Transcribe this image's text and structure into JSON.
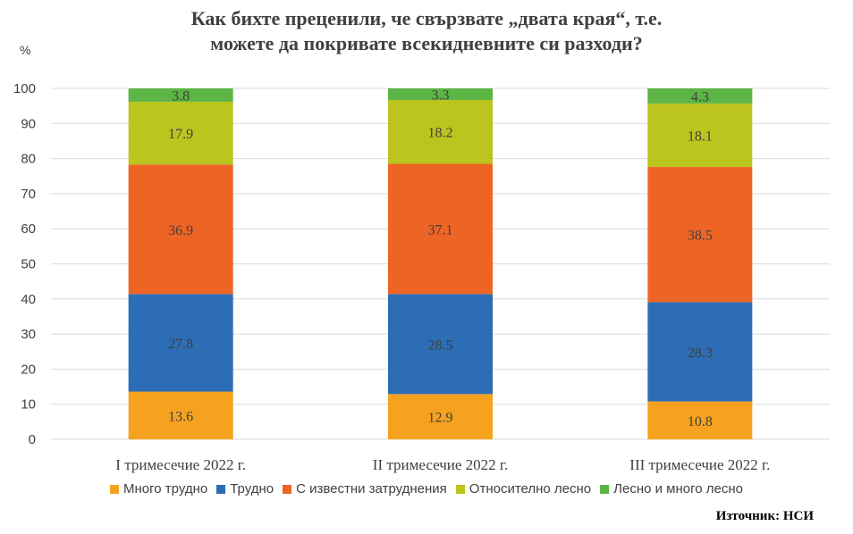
{
  "chart_data": {
    "type": "bar",
    "stacked": true,
    "title_lines": [
      "Как бихте преценили, че свързвате „двата края“, т.е.",
      "можете да покривате всекидневните си разходи?"
    ],
    "ylabel": "%",
    "ylim": [
      0,
      100
    ],
    "yticks": [
      0,
      10,
      20,
      30,
      40,
      50,
      60,
      70,
      80,
      90,
      100
    ],
    "grid": true,
    "legend_position": "bottom",
    "categories": [
      "I тримесечие 2022  г.",
      "II тримесечие 2022  г.",
      "III тримесечие 2022  г."
    ],
    "series": [
      {
        "name": "Много трудно",
        "color": "#F5A21F",
        "values": [
          13.6,
          12.9,
          10.8
        ]
      },
      {
        "name": "Трудно",
        "color": "#2C6DB5",
        "values": [
          27.8,
          28.5,
          28.3
        ]
      },
      {
        "name": "С известни  затруднения",
        "color": "#EE6425",
        "values": [
          36.9,
          37.1,
          38.5
        ]
      },
      {
        "name": "Относително  лесно",
        "color": "#BCC41E",
        "values": [
          17.9,
          18.2,
          18.1
        ]
      },
      {
        "name": "Лесно и много лесно",
        "color": "#5CB545",
        "values": [
          3.8,
          3.3,
          4.3
        ]
      }
    ]
  },
  "source": "Източник: НСИ"
}
